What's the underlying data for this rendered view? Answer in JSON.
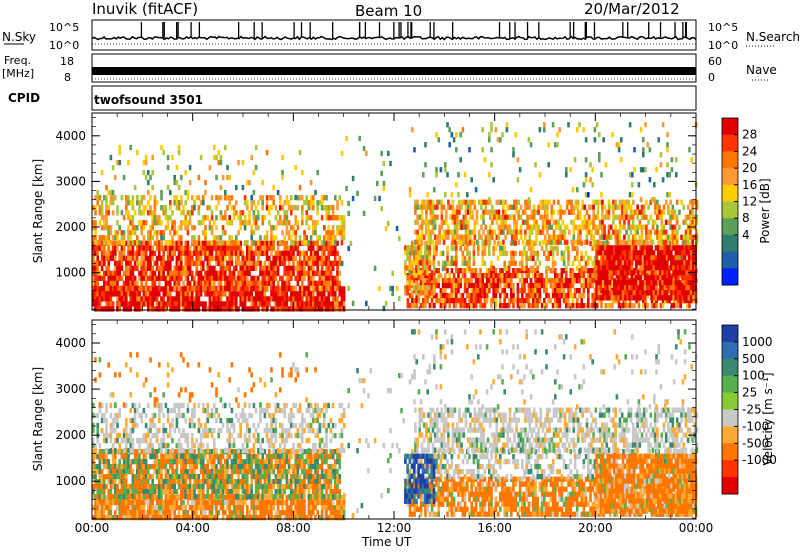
{
  "header": {
    "station": "Inuvik (fitACF)",
    "beam": "Beam 10",
    "date": "20/Mar/2012"
  },
  "top_panels": {
    "nsky_label": "N.Sky",
    "nsky_ticks": [
      "10^5",
      "10^0"
    ],
    "nsearch_label": "N.Search",
    "nsearch_ticks": [
      "10^5",
      "10^0"
    ],
    "freq_label": "Freq.",
    "freq_unit": "[MHz]",
    "freq_ticks": [
      "18",
      "8"
    ],
    "nave_label": "Nave",
    "nave_ticks": [
      "60",
      "0"
    ],
    "cpid_label": "CPID",
    "cpid_value": "twofsound 3501"
  },
  "chart_data": [
    {
      "type": "heatmap",
      "name": "power",
      "ylabel": "Slant Range [km]",
      "xlabel": "Time UT",
      "xticks": [
        "00:00",
        "04:00",
        "08:00",
        "12:00",
        "16:00",
        "20:00",
        "00:00"
      ],
      "xrange_hours": [
        0,
        24
      ],
      "yticks": [
        "1000",
        "2000",
        "3000",
        "4000"
      ],
      "ylim": [
        180,
        4500
      ],
      "colorbar_label": "Power [dB]",
      "colorbar_ticks": [
        "28",
        "24",
        "20",
        "16",
        "12",
        "8",
        "4"
      ],
      "colorbar_colors": [
        "#e00000",
        "#ff3300",
        "#ff7700",
        "#ff9933",
        "#ffcc00",
        "#a8c83a",
        "#5aa05a",
        "#2e7d6e",
        "#1f5fa8",
        "#0020ff"
      ]
    },
    {
      "type": "heatmap",
      "name": "velocity",
      "ylabel": "Slant Range [km]",
      "xlabel": "Time UT",
      "xticks": [
        "00:00",
        "04:00",
        "08:00",
        "12:00",
        "16:00",
        "20:00",
        "00:00"
      ],
      "xrange_hours": [
        0,
        24
      ],
      "yticks": [
        "1000",
        "2000",
        "3000",
        "4000"
      ],
      "ylim": [
        180,
        4500
      ],
      "colorbar_label": "Velocity [m s⁻¹]",
      "colorbar_ticks": [
        "1000",
        "500",
        "100",
        "25",
        "-25",
        "-100",
        "-500",
        "-1000"
      ],
      "colorbar_colors": [
        "#1f3fa8",
        "#2e6db0",
        "#3a8a70",
        "#55b050",
        "#88cc33",
        "#c8c8c8",
        "#ffaa33",
        "#ff7700",
        "#ff3300",
        "#e00000"
      ]
    }
  ],
  "footer": {
    "xlabel": "Time UT"
  }
}
